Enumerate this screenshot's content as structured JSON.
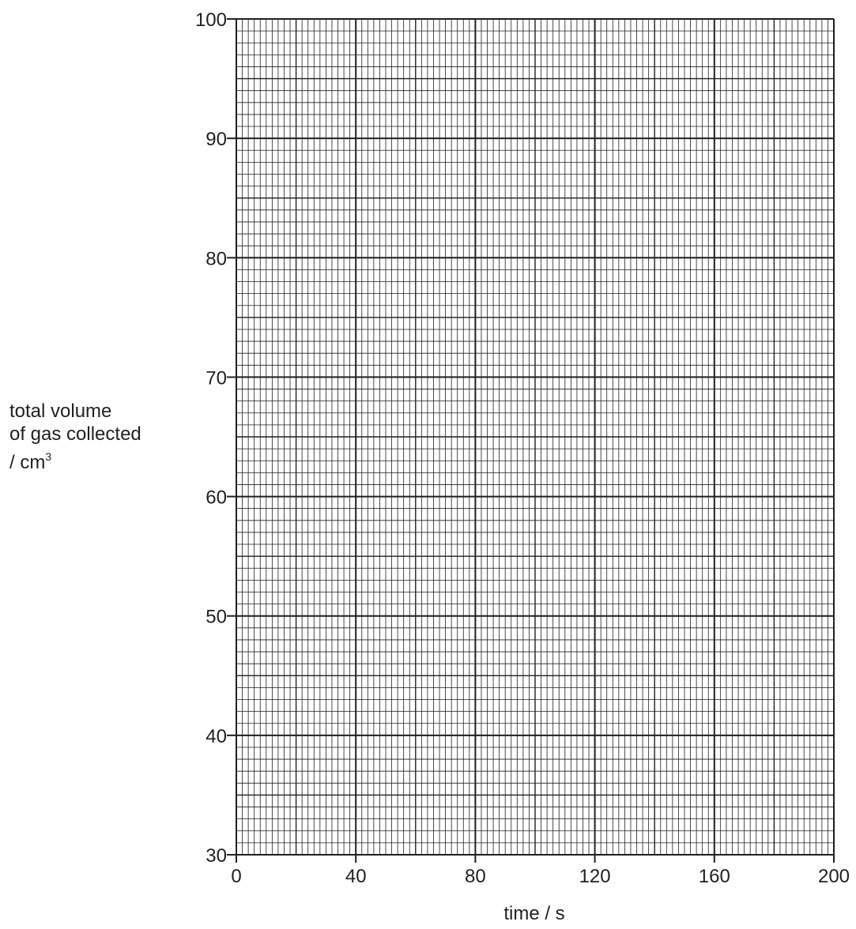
{
  "chart_data": {
    "type": "line",
    "title": "",
    "xlabel": "time / s",
    "ylabel": [
      "total volume",
      "of gas collected",
      "/ cm³"
    ],
    "xlim": [
      0,
      200
    ],
    "ylim": [
      30,
      100
    ],
    "x_ticks": [
      0,
      40,
      80,
      120,
      160,
      200
    ],
    "y_ticks": [
      30,
      40,
      50,
      60,
      70,
      80,
      90,
      100
    ],
    "grid": true,
    "series": []
  },
  "labels": {
    "y_line1": "total volume",
    "y_line2": "of gas collected",
    "y_line3_prefix": "/ cm",
    "y_line3_sup": "3",
    "x_label": "time / s"
  }
}
